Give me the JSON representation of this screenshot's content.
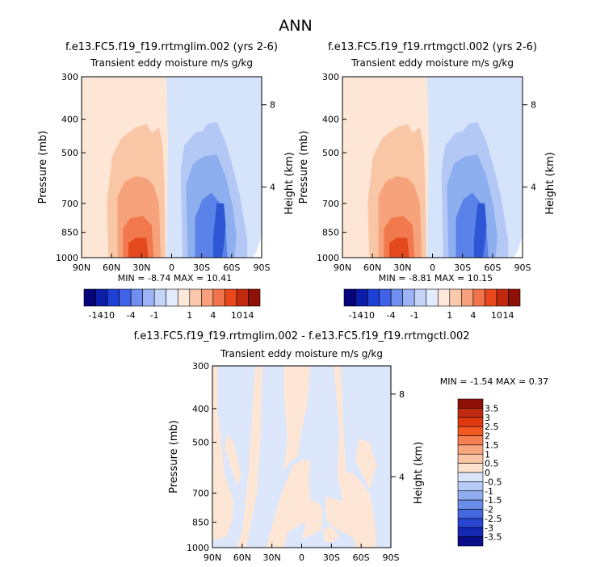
{
  "main_title": "ANN",
  "panels": [
    {
      "title": "f.e13.FC5.f19_f19.rrtmglim.002 (yrs 2-6)",
      "subtitle": "Transient eddy moisture m/s g/kg",
      "ylabel": "Pressure (mb)",
      "ylabel_right": "Height (km)",
      "stats": "MIN = -8.74 MAX = 10.41",
      "y_ticks": [
        "300",
        "400",
        "500",
        "700",
        "850",
        "1000"
      ],
      "x_ticks": [
        "90N",
        "60N",
        "30N",
        "0",
        "30S",
        "60S",
        "90S"
      ],
      "height_ticks": [
        "8",
        "4"
      ]
    },
    {
      "title": "f.e13.FC5.f19_f19.rrtmgctl.002 (yrs 2-6)",
      "subtitle": "Transient eddy moisture m/s g/kg",
      "ylabel": "Pressure (mb)",
      "ylabel_right": "Height (km)",
      "stats": "MIN = -8.81 MAX = 10.15",
      "y_ticks": [
        "300",
        "400",
        "500",
        "700",
        "850",
        "1000"
      ],
      "x_ticks": [
        "90N",
        "60N",
        "30N",
        "0",
        "30S",
        "60S",
        "90S"
      ],
      "height_ticks": [
        "8",
        "4"
      ]
    },
    {
      "title": "f.e13.FC5.f19_f19.rrtmglim.002 - f.e13.FC5.f19_f19.rrtmgctl.002",
      "subtitle": "Transient eddy moisture m/s g/kg",
      "ylabel": "Pressure (mb)",
      "ylabel_right": "Height (km)",
      "stats": "MIN = -1.54 MAX = 0.37",
      "y_ticks": [
        "300",
        "400",
        "500",
        "700",
        "850",
        "1000"
      ],
      "x_ticks": [
        "90N",
        "60N",
        "30N",
        "0",
        "30S",
        "60S",
        "90S"
      ],
      "height_ticks": [
        "8",
        "4"
      ]
    }
  ],
  "top_colorbar": {
    "colors": [
      "#05047a",
      "#0a1ea8",
      "#1e3fd4",
      "#3f62e6",
      "#6f8ef0",
      "#9cb3f5",
      "#c4d4f9",
      "#e2eafd",
      "#fde9dc",
      "#fbc9ab",
      "#f7a07d",
      "#f2744c",
      "#e9481f",
      "#c22a10",
      "#8e1106"
    ],
    "labels": [
      "-14",
      "-10",
      "-4",
      "-1",
      "1",
      "4",
      "10",
      "14"
    ]
  },
  "bottom_colorbar": {
    "colors": [
      "#8e1106",
      "#c22a10",
      "#e2380f",
      "#f2581f",
      "#f6804f",
      "#f9a57e",
      "#fbc6a6",
      "#fde3cd",
      "#d9e5fb",
      "#b6cbf6",
      "#8fadf0",
      "#6a8de9",
      "#4468e0",
      "#2645d0",
      "#1528b4",
      "#0a0b88"
    ],
    "labels": [
      "3.5",
      "3",
      "2.5",
      "2",
      "1.5",
      "1",
      "0.5",
      "0",
      "-0.5",
      "-1",
      "-1.5",
      "-2",
      "-2.5",
      "-3",
      "-3.5"
    ]
  },
  "chart_data": [
    {
      "type": "heatmap",
      "title": "f.e13.FC5.f19_f19.rrtmglim.002 (yrs 2-6)",
      "subtitle": "Transient eddy moisture m/s g/kg",
      "xlabel": "",
      "ylabel": "Pressure (mb)",
      "x_categories": [
        "90N",
        "60N",
        "30N",
        "0",
        "30S",
        "60S",
        "90S"
      ],
      "y_categories": [
        "300",
        "400",
        "500",
        "700",
        "850",
        "1000"
      ],
      "min": -8.74,
      "max": 10.41,
      "contour_levels": [
        -14,
        -10,
        -4,
        -1,
        1,
        4,
        10,
        14
      ]
    },
    {
      "type": "heatmap",
      "title": "f.e13.FC5.f19_f19.rrtmgctl.002 (yrs 2-6)",
      "subtitle": "Transient eddy moisture m/s g/kg",
      "xlabel": "",
      "ylabel": "Pressure (mb)",
      "x_categories": [
        "90N",
        "60N",
        "30N",
        "0",
        "30S",
        "60S",
        "90S"
      ],
      "y_categories": [
        "300",
        "400",
        "500",
        "700",
        "850",
        "1000"
      ],
      "min": -8.81,
      "max": 10.15,
      "contour_levels": [
        -14,
        -10,
        -4,
        -1,
        1,
        4,
        10,
        14
      ]
    },
    {
      "type": "heatmap",
      "title": "f.e13.FC5.f19_f19.rrtmglim.002 - f.e13.FC5.f19_f19.rrtmgctl.002",
      "subtitle": "Transient eddy moisture m/s g/kg",
      "xlabel": "",
      "ylabel": "Pressure (mb)",
      "x_categories": [
        "90N",
        "60N",
        "30N",
        "0",
        "30S",
        "60S",
        "90S"
      ],
      "y_categories": [
        "300",
        "400",
        "500",
        "700",
        "850",
        "1000"
      ],
      "min": -1.54,
      "max": 0.37,
      "contour_levels": [
        -3.5,
        -3,
        -2.5,
        -2,
        -1.5,
        -1,
        -0.5,
        0,
        0.5,
        1,
        1.5,
        2,
        2.5,
        3,
        3.5
      ]
    }
  ]
}
